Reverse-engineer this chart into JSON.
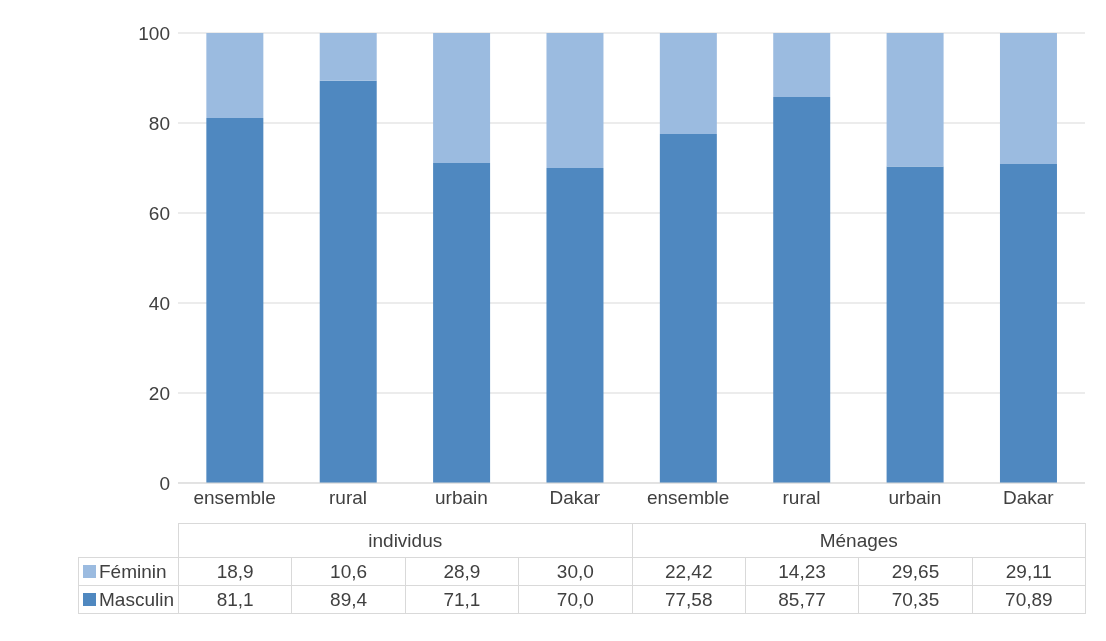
{
  "chart_data": {
    "type": "bar",
    "stacked": true,
    "categories": [
      "ensemble",
      "rural",
      "urbain",
      "Dakar",
      "ensemble",
      "rural",
      "urbain",
      "Dakar"
    ],
    "series": [
      {
        "name": "Masculin",
        "color": "#4f88c0",
        "values": [
          81.1,
          89.4,
          71.1,
          70.0,
          77.58,
          85.77,
          70.35,
          70.89
        ],
        "value_labels": [
          "81,1",
          "89,4",
          "71,1",
          "70,0",
          "77,58",
          "85,77",
          "70,35",
          "70,89"
        ]
      },
      {
        "name": "Féminin",
        "color": "#9bbbe0",
        "values": [
          18.9,
          10.6,
          28.9,
          30.0,
          22.42,
          14.23,
          29.65,
          29.11
        ],
        "value_labels": [
          "18,9",
          "10,6",
          "28,9",
          "30,0",
          "22,42",
          "14,23",
          "29,65",
          "29,11"
        ]
      }
    ],
    "annotations": [
      "individus",
      "Ménages"
    ],
    "ylim": [
      0,
      100
    ],
    "yticks": [
      0,
      20,
      40,
      60,
      80,
      100
    ],
    "grid": "y",
    "legend": "bottom"
  }
}
